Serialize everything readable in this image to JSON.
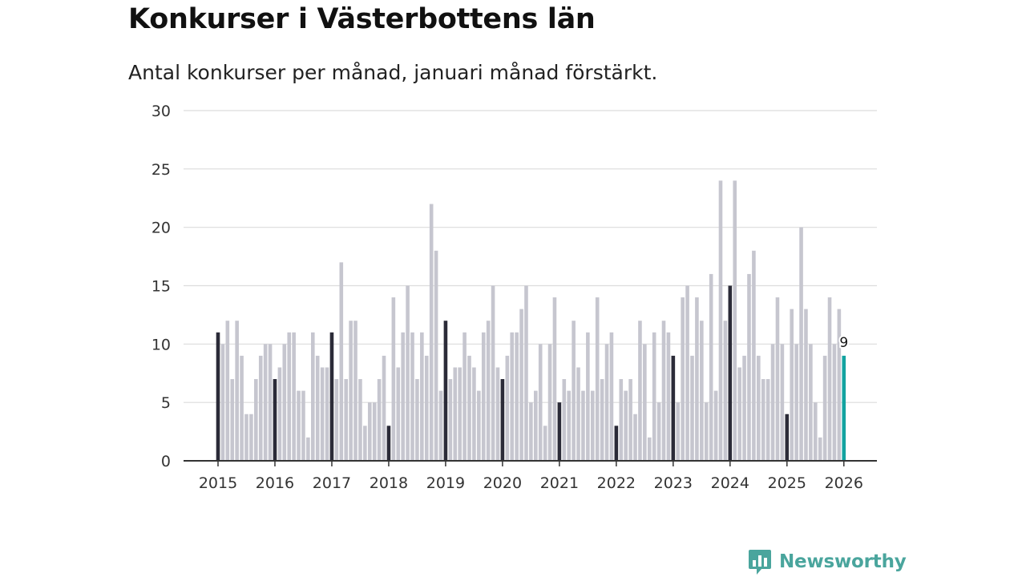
{
  "title": "Konkurser i Västerbottens län",
  "subtitle": "Antal konkurser per månad, januari månad förstärkt.",
  "brand": {
    "name": "Newsworthy",
    "icon": "newsworthy-logo-icon",
    "color": "#4aa59d"
  },
  "colors": {
    "highlight": "#2b2b38",
    "normal": "#c6c6cf",
    "latest": "#13a3a0",
    "grid": "#dcdcdc",
    "axis": "#333333"
  },
  "chart_data": {
    "type": "bar",
    "title": "Konkurser i Västerbottens län",
    "subtitle": "Antal konkurser per månad, januari månad förstärkt.",
    "xlabel": "",
    "ylabel": "",
    "ylim": [
      0,
      30
    ],
    "yticks": [
      0,
      5,
      10,
      15,
      20,
      25,
      30
    ],
    "xticks": [
      "2015",
      "2016",
      "2017",
      "2018",
      "2019",
      "2020",
      "2021",
      "2022",
      "2023",
      "2024",
      "2025",
      "2026"
    ],
    "grid": true,
    "start": "2015-01",
    "end": "2026-01",
    "values": [
      11,
      10,
      12,
      7,
      12,
      9,
      4,
      4,
      7,
      9,
      10,
      10,
      7,
      8,
      10,
      11,
      11,
      6,
      6,
      2,
      11,
      9,
      8,
      8,
      11,
      7,
      17,
      7,
      12,
      12,
      7,
      3,
      5,
      5,
      7,
      9,
      3,
      14,
      8,
      11,
      15,
      11,
      7,
      11,
      9,
      22,
      18,
      6,
      12,
      7,
      8,
      8,
      11,
      9,
      8,
      6,
      11,
      12,
      15,
      8,
      7,
      9,
      11,
      11,
      13,
      15,
      5,
      6,
      10,
      3,
      10,
      14,
      5,
      7,
      6,
      12,
      8,
      6,
      11,
      6,
      14,
      7,
      10,
      11,
      3,
      7,
      6,
      7,
      4,
      12,
      10,
      2,
      11,
      5,
      12,
      11,
      9,
      5,
      14,
      15,
      9,
      14,
      12,
      5,
      16,
      6,
      24,
      12,
      15,
      24,
      8,
      9,
      16,
      18,
      9,
      7,
      7,
      10,
      14,
      10,
      4,
      13,
      10,
      20,
      13,
      10,
      5,
      2,
      9,
      14,
      10,
      13,
      9
    ],
    "annotation": {
      "label": "9",
      "index": 132
    },
    "legend": "januari månad förstärkt"
  }
}
